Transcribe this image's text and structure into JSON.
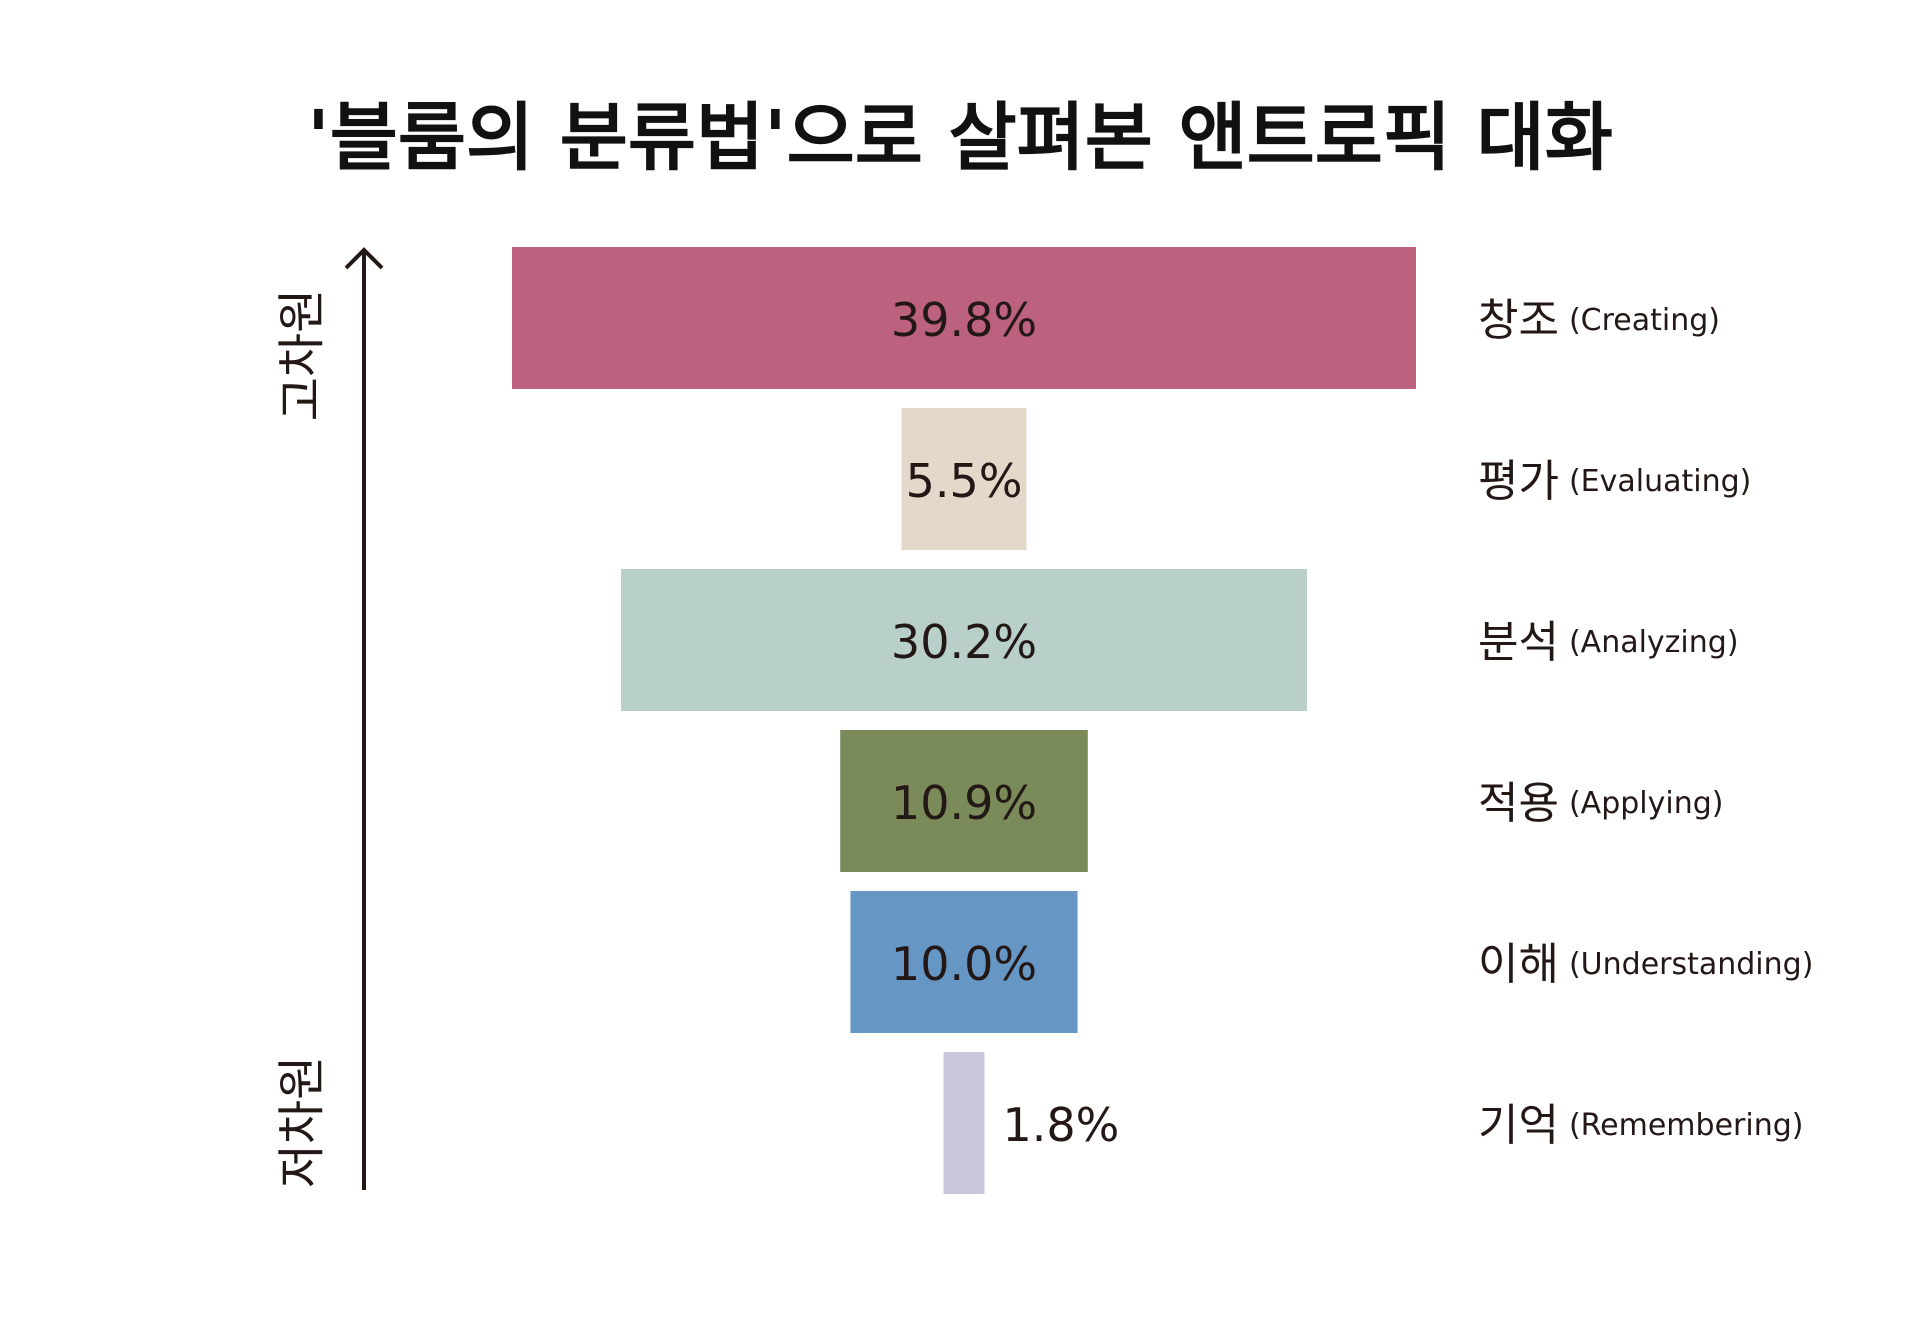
{
  "title": "'블룸의 분류법'으로 살펴본 앤트로픽 대화",
  "axis": {
    "high_label": "고차원",
    "low_label": "저차원"
  },
  "chart_data": {
    "type": "bar",
    "orientation": "horizontal-centered",
    "categories": [
      {
        "name": "창조",
        "en": "(Creating)"
      },
      {
        "name": "평가",
        "en": "(Evaluating)"
      },
      {
        "name": "분석",
        "en": "(Analyzing)"
      },
      {
        "name": "적용",
        "en": "(Applying)"
      },
      {
        "name": "이해",
        "en": "(Understanding)"
      },
      {
        "name": "기억",
        "en": "(Remembering)"
      }
    ],
    "values": [
      39.8,
      5.5,
      30.2,
      10.9,
      10.0,
      1.8
    ],
    "value_labels": [
      "39.8%",
      "5.5%",
      "30.2%",
      "10.9%",
      "10.0%",
      "1.8%"
    ],
    "colors": [
      "#bd627e",
      "#e2d9cb",
      "#b9d0ca",
      "#7a8a59",
      "#6696c3",
      "#c8c8da"
    ],
    "xlim": [
      0,
      39.8
    ]
  }
}
